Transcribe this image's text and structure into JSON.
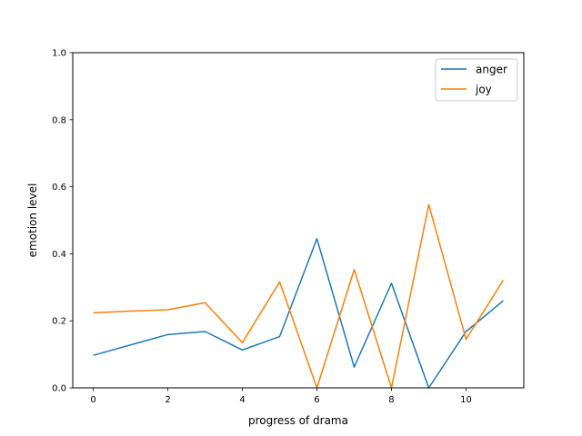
{
  "chart_data": {
    "type": "line",
    "title": "",
    "xlabel": "progress of drama",
    "ylabel": "emotion level",
    "xlim": [
      -0.55,
      11.55
    ],
    "ylim": [
      0,
      1
    ],
    "x_ticks": [
      0,
      2,
      4,
      6,
      8,
      10
    ],
    "x_tick_labels": [
      "0",
      "2",
      "4",
      "6",
      "8",
      "10"
    ],
    "y_ticks": [
      0,
      0.2,
      0.4,
      0.6,
      0.8,
      1.0
    ],
    "y_tick_labels": [
      "0.0",
      "0.2",
      "0.4",
      "0.6",
      "0.8",
      "1.0"
    ],
    "grid": false,
    "legend_position": "top-right",
    "x": [
      0,
      1,
      2,
      3,
      4,
      5,
      6,
      7,
      8,
      9,
      10,
      11
    ],
    "series": [
      {
        "name": "anger",
        "color": "#1f77b4",
        "values": [
          0.097,
          0.128,
          0.159,
          0.168,
          0.113,
          0.153,
          0.445,
          0.062,
          0.312,
          0.0,
          0.168,
          0.26
        ]
      },
      {
        "name": "joy",
        "color": "#ff7f0e",
        "values": [
          0.224,
          0.229,
          0.233,
          0.254,
          0.135,
          0.316,
          0.0,
          0.353,
          0.0,
          0.547,
          0.145,
          0.321
        ]
      }
    ]
  }
}
